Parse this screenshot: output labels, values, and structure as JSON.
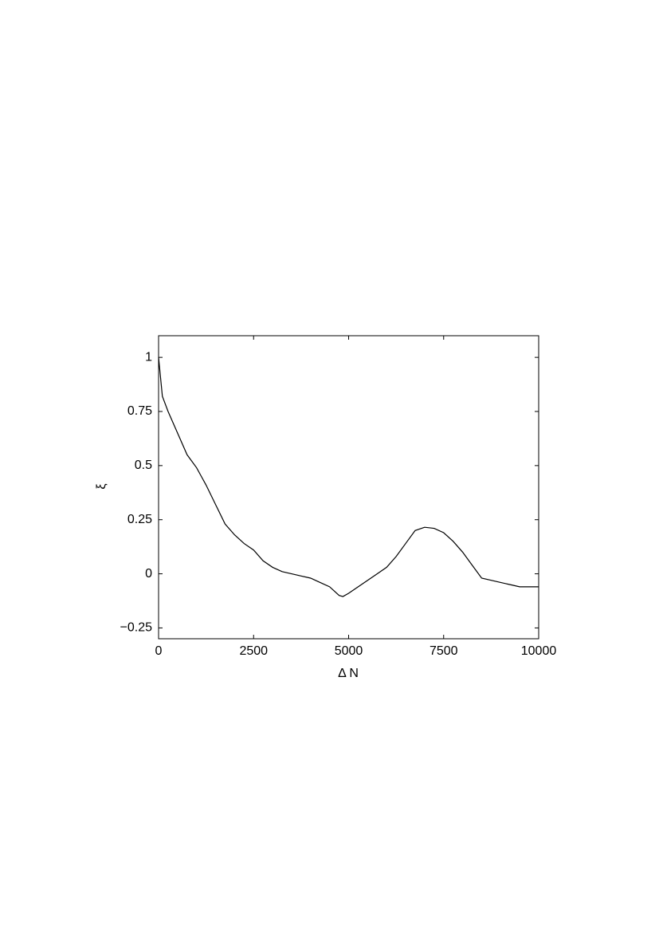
{
  "chart_data": {
    "type": "line",
    "xlabel": "Δ N",
    "ylabel": "ξ",
    "x": [
      0,
      100,
      250,
      500,
      750,
      1000,
      1250,
      1500,
      1750,
      2000,
      2250,
      2500,
      2750,
      3000,
      3250,
      3500,
      3750,
      4000,
      4250,
      4500,
      4750,
      4850,
      5000,
      5250,
      5500,
      5750,
      6000,
      6250,
      6500,
      6750,
      7000,
      7250,
      7500,
      7750,
      8000,
      8250,
      8500,
      8750,
      9000,
      9250,
      9500,
      9750,
      10000
    ],
    "series": [
      {
        "color": "#000000",
        "values": [
          1.0,
          0.82,
          0.75,
          0.65,
          0.55,
          0.49,
          0.41,
          0.32,
          0.23,
          0.18,
          0.14,
          0.11,
          0.06,
          0.03,
          0.01,
          0.0,
          -0.01,
          -0.02,
          -0.04,
          -0.06,
          -0.1,
          -0.105,
          -0.09,
          -0.06,
          -0.03,
          0.0,
          0.03,
          0.08,
          0.14,
          0.2,
          0.215,
          0.21,
          0.19,
          0.15,
          0.1,
          0.04,
          -0.02,
          -0.03,
          -0.04,
          -0.05,
          -0.06,
          -0.06,
          -0.06
        ]
      }
    ],
    "xlim": [
      0,
      10000
    ],
    "xticks": [
      0,
      2500,
      5000,
      7500,
      10000
    ],
    "ylim": [
      -0.3,
      1.1
    ],
    "yticks": [
      {
        "value": -0.25,
        "label": "−0.25"
      },
      0,
      0.25,
      0.5,
      0.75,
      1
    ],
    "grid": false
  }
}
